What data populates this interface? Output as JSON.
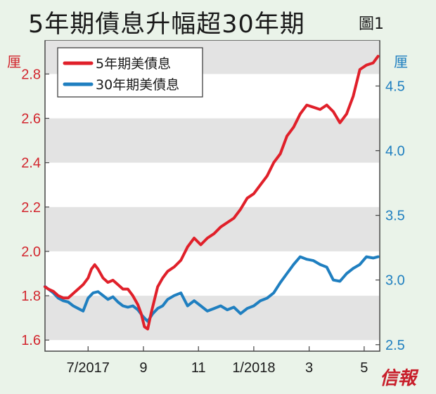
{
  "title": "5年期債息升幅超30年期",
  "figure_label": "圖1",
  "brand": "信報",
  "colors": {
    "series1": "#e0202a",
    "series2": "#1f7fc0",
    "band": "#e3e3e3",
    "plot_bg": "#ffffff"
  },
  "chart_data": {
    "type": "line",
    "title": "5年期債息升幅超30年期",
    "left_axis": {
      "unit": "厘",
      "range": [
        1.55,
        2.95
      ],
      "ticks": [
        "1.6",
        "1.8",
        "2.0",
        "2.2",
        "2.4",
        "2.6",
        "2.8"
      ]
    },
    "right_axis": {
      "unit": "厘",
      "range": [
        2.45,
        4.85
      ],
      "ticks": [
        "2.5",
        "3.0",
        "3.5",
        "4.0",
        "4.5"
      ]
    },
    "x_tick_labels": [
      "7/2017",
      "9",
      "11",
      "1/2018",
      "3",
      "5"
    ],
    "x_tick_positions": [
      2017.5,
      2017.667,
      2017.833,
      2018.0,
      2018.167,
      2018.333
    ],
    "x_range": [
      2017.37,
      2018.38
    ],
    "legend_position": "top-left",
    "series": [
      {
        "name": "5年期美債息",
        "axis": "left",
        "x": [
          2017.37,
          2017.38,
          2017.395,
          2017.41,
          2017.425,
          2017.44,
          2017.455,
          2017.47,
          2017.485,
          2017.5,
          2017.51,
          2017.52,
          2017.53,
          2017.545,
          2017.56,
          2017.575,
          2017.59,
          2017.605,
          2017.62,
          2017.635,
          2017.65,
          2017.66,
          2017.67,
          2017.68,
          2017.69,
          2017.7,
          2017.71,
          2017.725,
          2017.74,
          2017.76,
          2017.78,
          2017.8,
          2017.82,
          2017.84,
          2017.86,
          2017.88,
          2017.9,
          2017.92,
          2017.94,
          2017.96,
          2017.98,
          2018.0,
          2018.02,
          2018.04,
          2018.06,
          2018.08,
          2018.1,
          2018.12,
          2018.14,
          2018.16,
          2018.18,
          2018.2,
          2018.22,
          2018.24,
          2018.26,
          2018.28,
          2018.3,
          2018.32,
          2018.34,
          2018.36,
          2018.375
        ],
        "values": [
          1.84,
          1.83,
          1.82,
          1.8,
          1.79,
          1.79,
          1.81,
          1.83,
          1.85,
          1.88,
          1.92,
          1.94,
          1.92,
          1.88,
          1.86,
          1.87,
          1.85,
          1.83,
          1.83,
          1.8,
          1.76,
          1.72,
          1.66,
          1.65,
          1.72,
          1.78,
          1.84,
          1.88,
          1.91,
          1.93,
          1.96,
          2.02,
          2.06,
          2.03,
          2.06,
          2.08,
          2.11,
          2.13,
          2.15,
          2.19,
          2.24,
          2.26,
          2.3,
          2.34,
          2.4,
          2.44,
          2.52,
          2.56,
          2.62,
          2.66,
          2.65,
          2.64,
          2.66,
          2.63,
          2.58,
          2.62,
          2.7,
          2.82,
          2.84,
          2.85,
          2.88
        ]
      },
      {
        "name": "30年期美債息",
        "axis": "right",
        "x": [
          2017.37,
          2017.38,
          2017.395,
          2017.41,
          2017.425,
          2017.44,
          2017.455,
          2017.47,
          2017.485,
          2017.5,
          2017.515,
          2017.53,
          2017.545,
          2017.56,
          2017.575,
          2017.59,
          2017.605,
          2017.62,
          2017.635,
          2017.65,
          2017.665,
          2017.68,
          2017.695,
          2017.71,
          2017.725,
          2017.74,
          2017.76,
          2017.78,
          2017.8,
          2017.82,
          2017.84,
          2017.86,
          2017.88,
          2017.9,
          2017.92,
          2017.94,
          2017.96,
          2017.98,
          2018.0,
          2018.02,
          2018.04,
          2018.06,
          2018.08,
          2018.1,
          2018.12,
          2018.14,
          2018.16,
          2018.18,
          2018.2,
          2018.22,
          2018.24,
          2018.26,
          2018.28,
          2018.3,
          2018.32,
          2018.34,
          2018.36,
          2018.375
        ],
        "values": [
          2.95,
          2.93,
          2.9,
          2.86,
          2.84,
          2.83,
          2.8,
          2.78,
          2.76,
          2.86,
          2.9,
          2.91,
          2.88,
          2.85,
          2.87,
          2.83,
          2.8,
          2.79,
          2.8,
          2.77,
          2.72,
          2.68,
          2.74,
          2.78,
          2.8,
          2.85,
          2.88,
          2.9,
          2.8,
          2.84,
          2.8,
          2.76,
          2.78,
          2.8,
          2.77,
          2.79,
          2.74,
          2.78,
          2.8,
          2.84,
          2.86,
          2.9,
          2.98,
          3.05,
          3.12,
          3.18,
          3.16,
          3.15,
          3.12,
          3.1,
          3.0,
          2.99,
          3.05,
          3.09,
          3.12,
          3.18,
          3.17,
          3.18
        ]
      }
    ]
  }
}
